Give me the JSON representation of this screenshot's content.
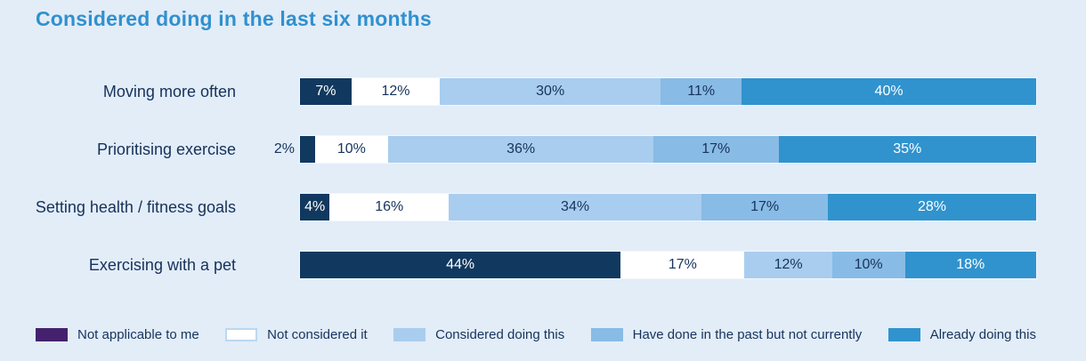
{
  "title": "Considered doing in the last six months",
  "panel_background": "#e2edf8",
  "title_color": "#3190ce",
  "category_label_color": "#16315a",
  "chart_data": {
    "type": "bar",
    "orientation": "horizontal",
    "stacked": true,
    "value_suffix": "%",
    "xlim": [
      0,
      100
    ],
    "grid": false,
    "legend_position": "bottom",
    "outside_label_threshold": 3,
    "categories": [
      "Moving more often",
      "Prioritising exercise",
      "Setting health / fitness goals",
      "Exercising with a pet"
    ],
    "series": [
      {
        "name": "Not applicable to me",
        "bar_color": "#11395f",
        "value_label_color": "#ffffff",
        "legend_swatch": {
          "fill": "#44216e"
        },
        "values": [
          7,
          2,
          4,
          44
        ]
      },
      {
        "name": "Not considered it",
        "bar_color": "#ffffff",
        "value_label_color": "#17335c",
        "legend_swatch": {
          "fill": "#ffffff",
          "border": "#bcd8ef"
        },
        "values": [
          12,
          10,
          16,
          17
        ]
      },
      {
        "name": "Considered doing this",
        "bar_color": "#a9cdee",
        "value_label_color": "#17335c",
        "legend_swatch": {
          "fill": "#a9cdee"
        },
        "values": [
          30,
          36,
          34,
          12
        ]
      },
      {
        "name": "Have done in the past but not currently",
        "bar_color": "#88bbe5",
        "value_label_color": "#17335c",
        "legend_swatch": {
          "fill": "#88bbe5"
        },
        "values": [
          11,
          17,
          17,
          10
        ]
      },
      {
        "name": "Already doing this",
        "bar_color": "#3093ce",
        "value_label_color": "#ffffff",
        "legend_swatch": {
          "fill": "#3093ce"
        },
        "values": [
          40,
          35,
          28,
          18
        ]
      }
    ]
  }
}
